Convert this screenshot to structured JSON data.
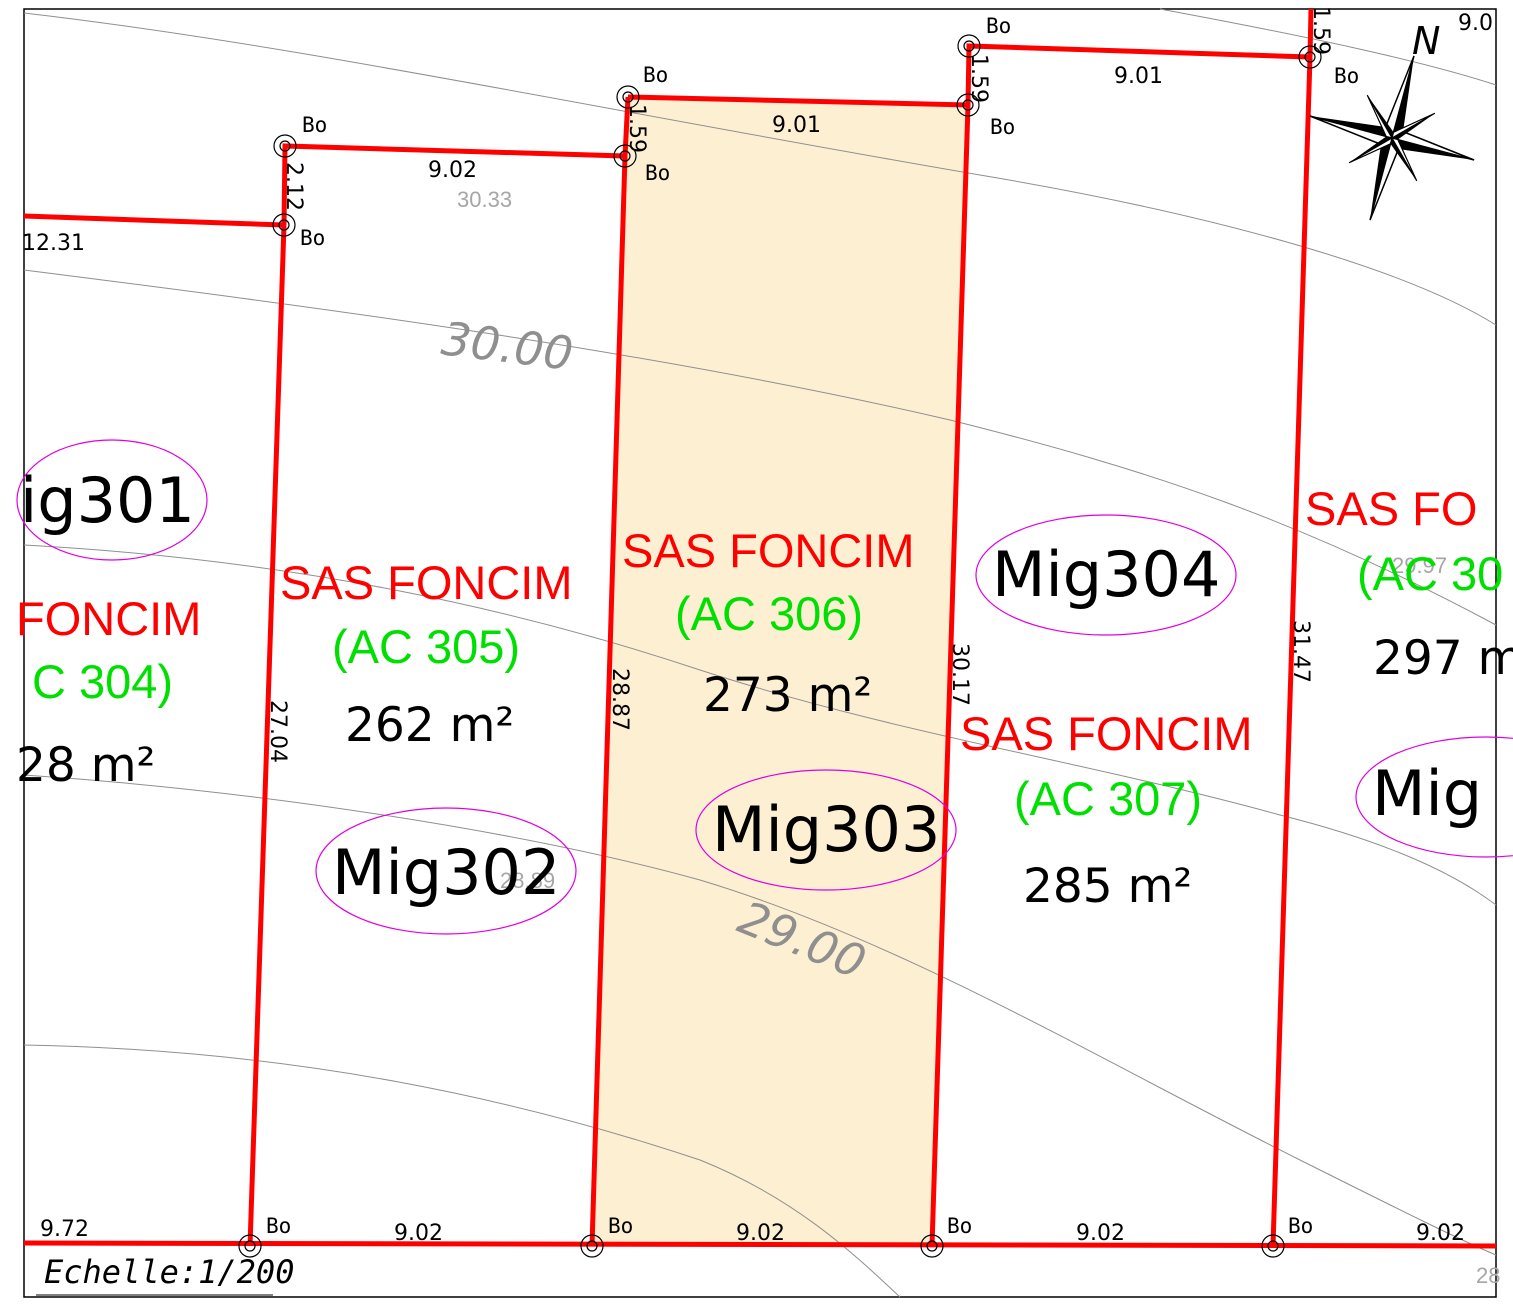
{
  "map": {
    "scale_label": "Echelle:1/200",
    "north_label": "N",
    "contours": [
      {
        "label": "30.00"
      },
      {
        "label": "29.00"
      }
    ],
    "spot_heights": [
      "30.33",
      "29.97",
      "28.89",
      "28"
    ],
    "marker_label": "Bo",
    "colors": {
      "boundary": "#ff0000",
      "owner": "#ff0000",
      "reference": "#00e000",
      "selected_fill": "#fdefd2",
      "label_ellipse": "#e000e0",
      "contour": "#8f8f8f"
    },
    "parcels": [
      {
        "id": "mig301",
        "label": "ig301",
        "owner": "FONCIM",
        "reference": "C 304)",
        "area": "28 m²"
      },
      {
        "id": "mig302",
        "label": "Mig302",
        "owner": "SAS FONCIM",
        "reference": "(AC 305)",
        "area": "262 m²"
      },
      {
        "id": "mig303",
        "label": "Mig303",
        "owner": "SAS FONCIM",
        "reference": "(AC 306)",
        "area": "273 m²",
        "selected": true
      },
      {
        "id": "mig304",
        "label": "Mig304",
        "owner": "SAS FONCIM",
        "reference": "(AC 307)",
        "area": "285 m²"
      },
      {
        "id": "mig305",
        "label": "Mig",
        "owner": "SAS FO",
        "reference": "(AC 30",
        "area": "297 m"
      }
    ],
    "dimensions": {
      "top_left_partial": "12.31",
      "top_302": "9.02",
      "left_302_offset": "2.12",
      "top_303": "9.01",
      "left_303_offset": "1.59",
      "top_304": "9.01",
      "left_304_offset": "1.59",
      "right_304_offset": "1.59",
      "top_right_partial": "9.0",
      "side_302": "27.04",
      "side_303": "28.87",
      "side_304": "30.17",
      "side_305": "31.47",
      "bottom_left_partial": "9.72",
      "bottom_302": "9.02",
      "bottom_303": "9.02",
      "bottom_304": "9.02",
      "bottom_305": "9.02"
    }
  }
}
